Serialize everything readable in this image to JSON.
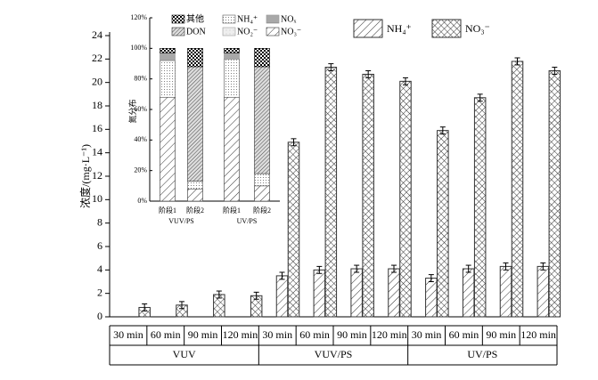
{
  "chart_data": [
    {
      "type": "bar",
      "y_label": "浓度/(mg·L⁻¹)",
      "categories": [
        "30 min",
        "60 min",
        "90 min",
        "120 min",
        "30 min",
        "60 min",
        "90 min",
        "120 min",
        "30 min",
        "60 min",
        "90 min",
        "120 min"
      ],
      "group_labels": [
        "VUV",
        "VUV/PS",
        "UV/PS"
      ],
      "ylim": [
        0,
        24
      ],
      "yticks": [
        0,
        2,
        4,
        6,
        8,
        10,
        12,
        14,
        16,
        18,
        20,
        22,
        24
      ],
      "series": [
        {
          "name": "NH₄⁺",
          "color": "#333333",
          "pattern": "diagonal",
          "values": [
            null,
            null,
            null,
            null,
            3.5,
            4.0,
            4.1,
            4.1,
            3.3,
            4.1,
            4.3,
            4.3
          ],
          "errors": [
            null,
            null,
            null,
            null,
            0.3,
            0.3,
            0.3,
            0.3,
            0.3,
            0.3,
            0.3,
            0.3
          ]
        },
        {
          "name": "NO₃⁻",
          "color": "#333333",
          "pattern": "crosshatch",
          "values": [
            0.8,
            1.0,
            1.9,
            1.8,
            14.9,
            21.3,
            20.7,
            20.1,
            15.9,
            18.7,
            21.8,
            21.0
          ],
          "errors": [
            0.3,
            0.3,
            0.3,
            0.3,
            0.3,
            0.3,
            0.3,
            0.3,
            0.3,
            0.3,
            0.3,
            0.3
          ]
        }
      ]
    },
    {
      "type": "stacked_bar",
      "y_label": "氮分布",
      "categories": [
        "阶段1",
        "阶段2",
        "阶段1",
        "阶段2"
      ],
      "group_labels": [
        "VUV/PS",
        "UV/PS"
      ],
      "ylim": [
        0,
        120
      ],
      "yticks": [
        {
          "value": 0,
          "label": "0%"
        },
        {
          "value": 20,
          "label": "20%"
        },
        {
          "value": 40,
          "label": "40%"
        },
        {
          "value": 60,
          "label": "60%"
        },
        {
          "value": 80,
          "label": "80%"
        },
        {
          "value": 100,
          "label": "100%"
        },
        {
          "value": 120,
          "label": "120%"
        }
      ],
      "series": [
        {
          "name": "NO₃⁻",
          "color": "#333333",
          "pattern": "diagonal",
          "values": [
            68,
            8,
            68,
            10
          ]
        },
        {
          "name": "NO₂⁻",
          "color": "#999999",
          "pattern": "light",
          "values": [
            0,
            0,
            0,
            0
          ]
        },
        {
          "name": "NH₄⁺",
          "color": "#555555",
          "pattern": "dots",
          "values": [
            24,
            5,
            25,
            8
          ]
        },
        {
          "name": "DON",
          "color": "#333333",
          "pattern": "dense",
          "values": [
            0,
            75,
            0,
            70
          ]
        },
        {
          "name": "NOₓ",
          "color": "#888888",
          "pattern": "graydots",
          "values": [
            5,
            0,
            4,
            0
          ]
        },
        {
          "name": "其他",
          "color": "#000000",
          "pattern": "checker",
          "values": [
            3,
            12,
            3,
            12
          ]
        }
      ]
    }
  ]
}
